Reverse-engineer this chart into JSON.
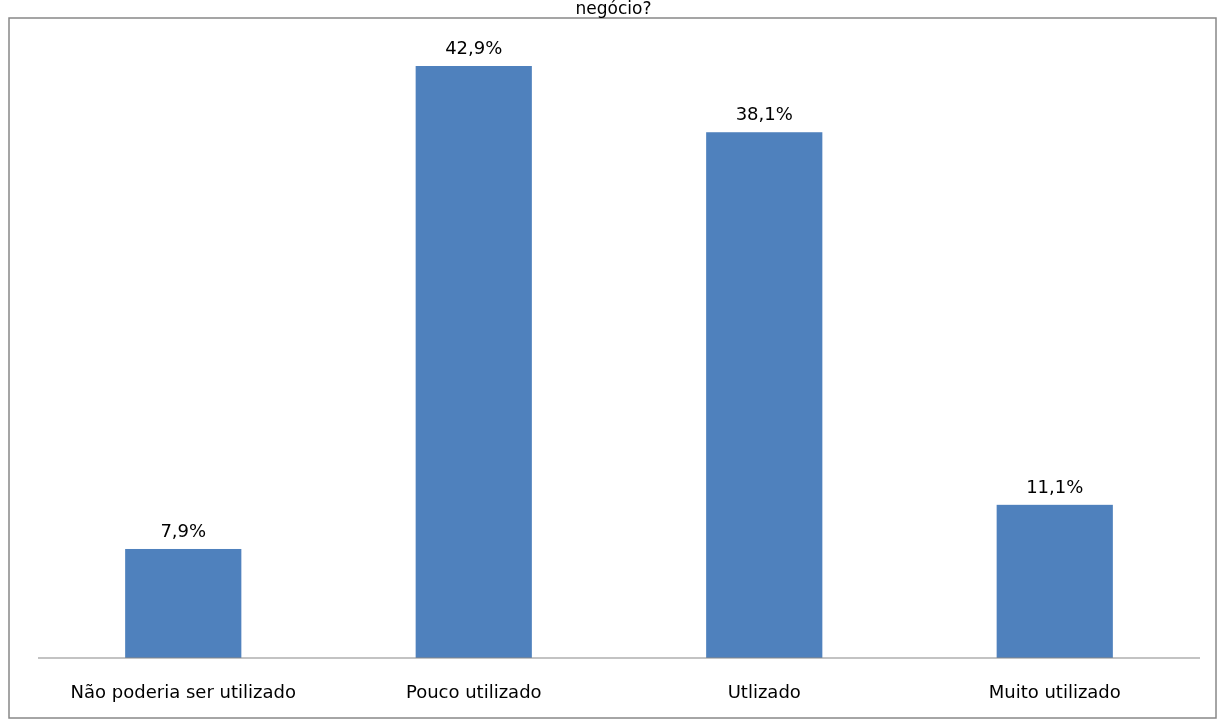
{
  "chart_data": {
    "type": "bar",
    "title": "negócio?",
    "categories": [
      "Não poderia ser utilizado",
      "Pouco utilizado",
      "Utlizado",
      "Muito utilizado"
    ],
    "values": [
      7.9,
      42.9,
      38.1,
      11.1
    ],
    "color": "#4f81bd",
    "data_labels": true,
    "value_labels": [
      "7,9%",
      "42,9%",
      "38,1%",
      "11,1%"
    ]
  }
}
